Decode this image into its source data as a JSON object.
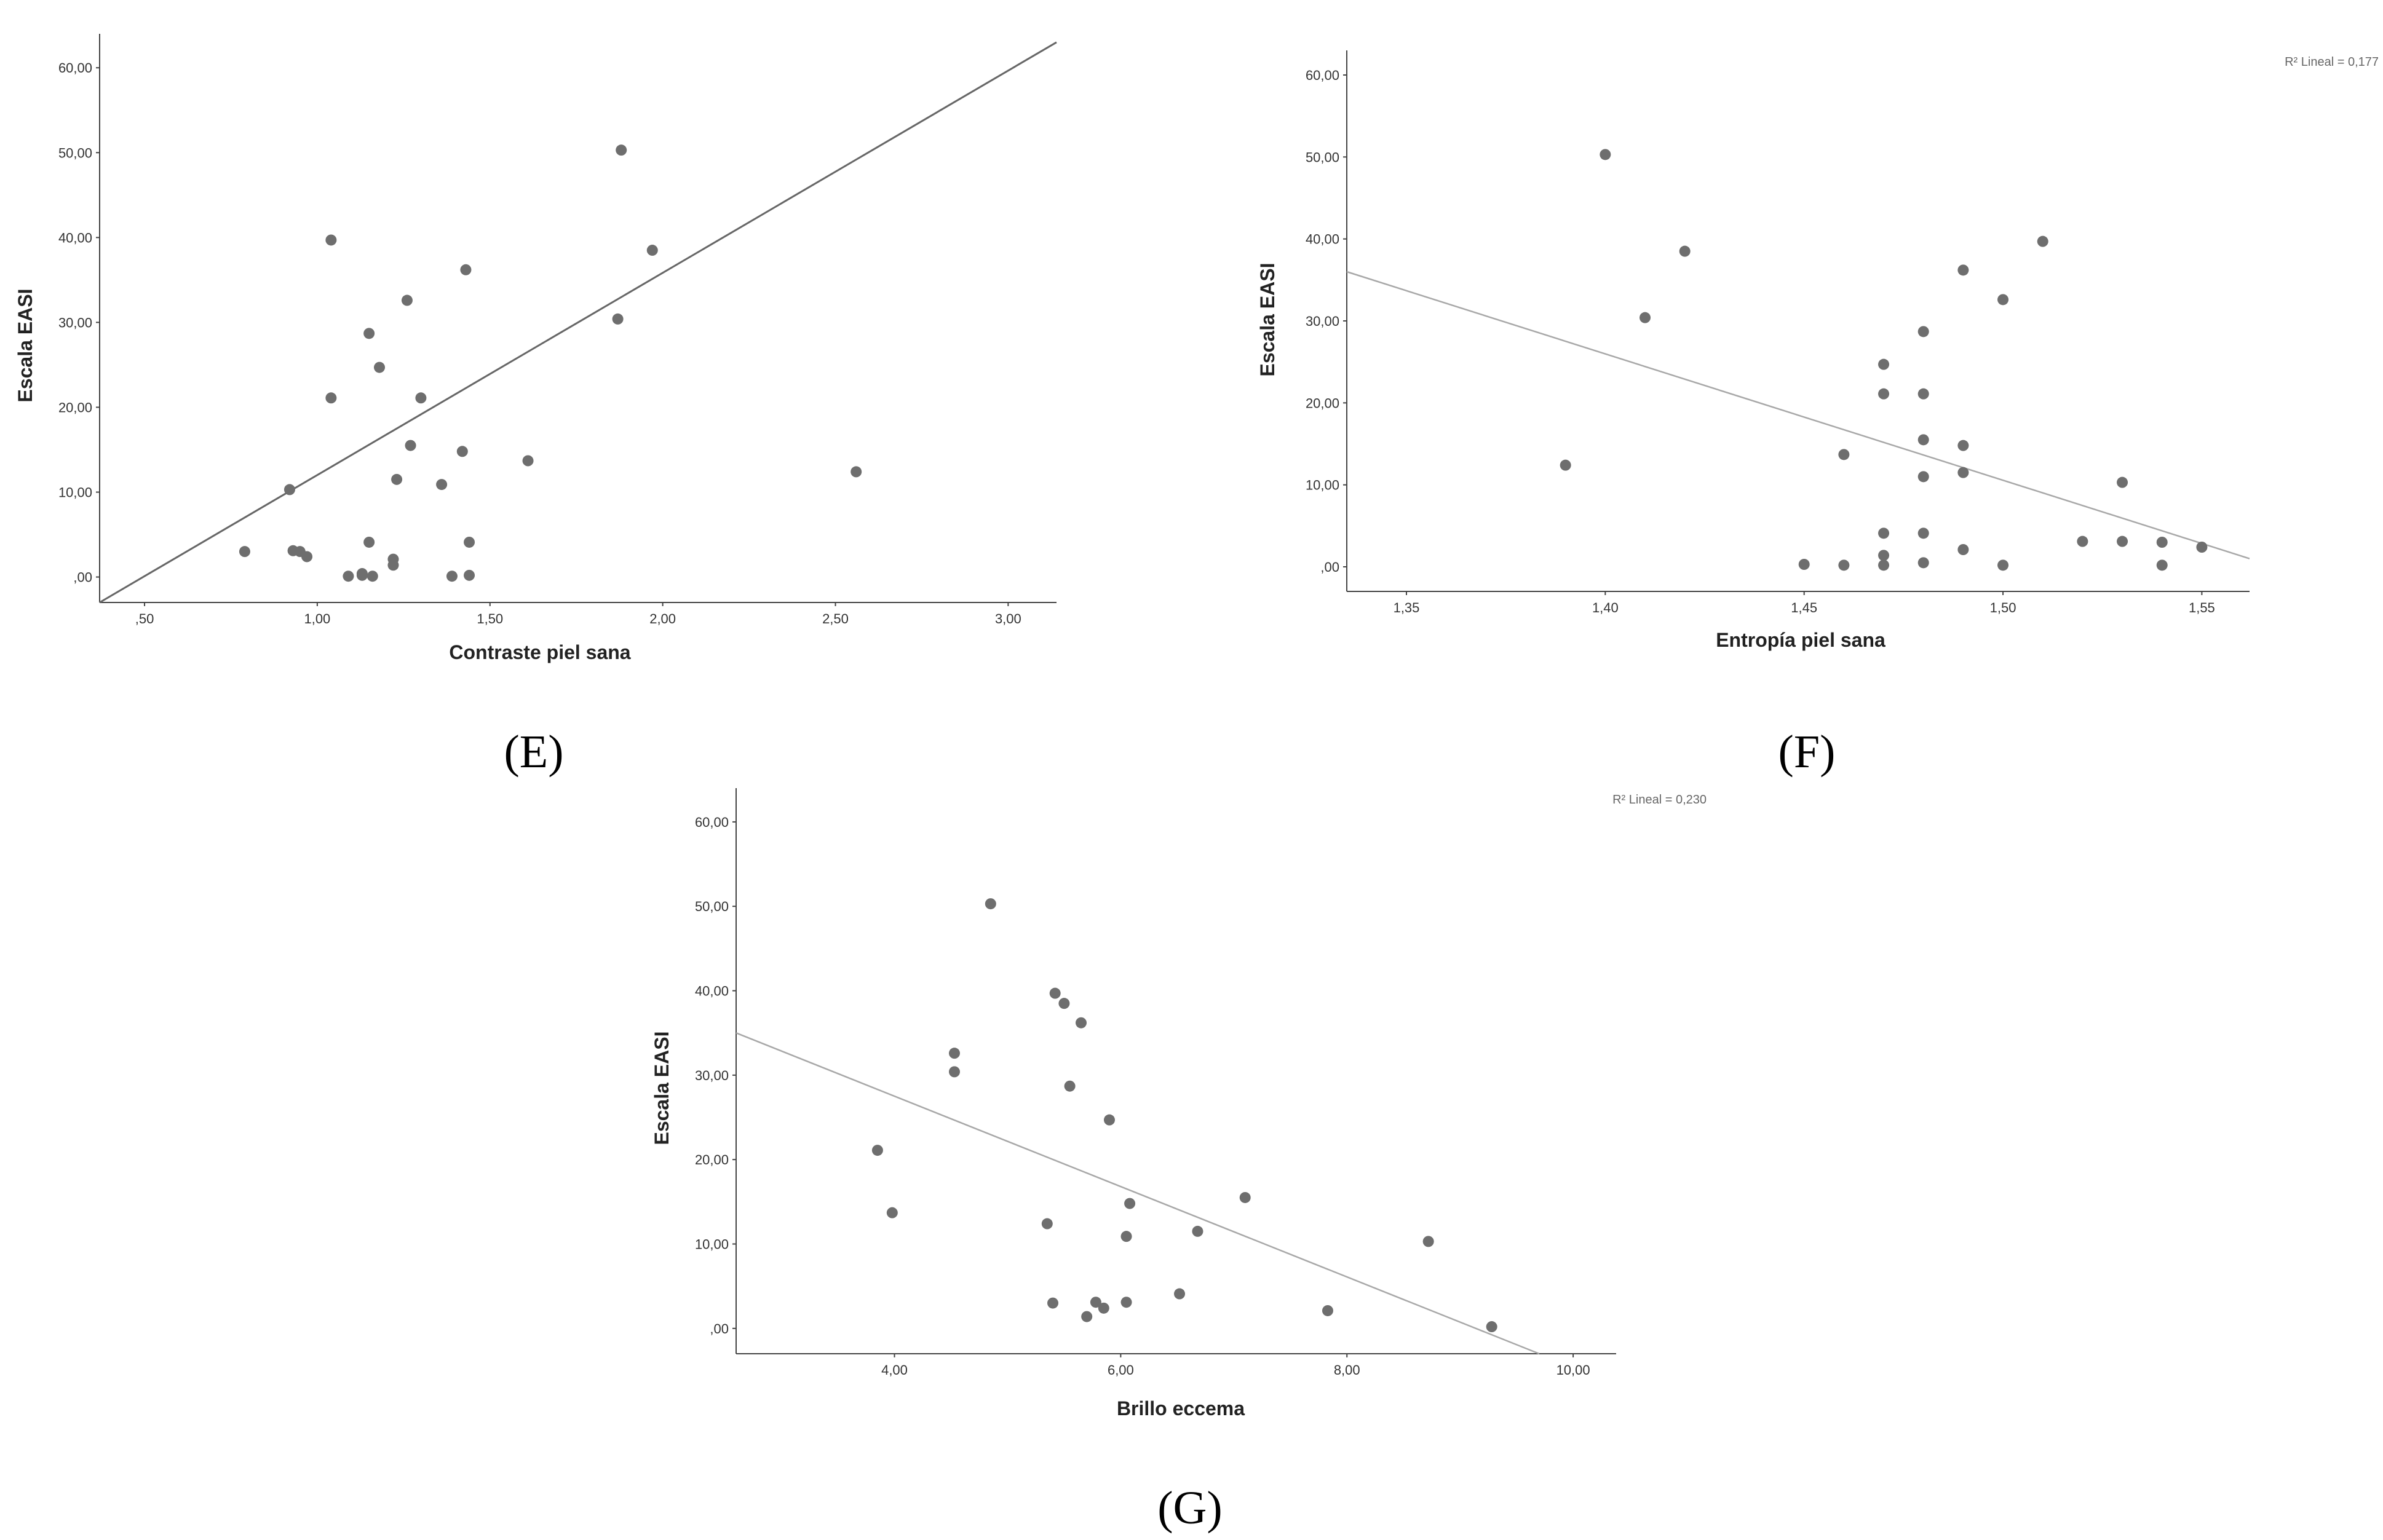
{
  "chart_data": [
    {
      "id": "E",
      "panel_label": "(E)",
      "type": "scatter",
      "xlabel": "Contraste piel sana",
      "ylabel": "Escala EASI",
      "xlim": [
        0.37,
        3.14
      ],
      "ylim": [
        -3.0,
        64.0
      ],
      "xticks": [
        0.5,
        1.0,
        1.5,
        2.0,
        2.5,
        3.0
      ],
      "xtick_labels": [
        ",50",
        "1,00",
        "1,50",
        "2,00",
        "2,50",
        "3,00"
      ],
      "yticks": [
        0,
        10,
        20,
        30,
        40,
        50,
        60
      ],
      "ytick_labels": [
        ",00",
        "10,00",
        "20,00",
        "30,00",
        "40,00",
        "50,00",
        "60,00"
      ],
      "r2_label": "",
      "fit_line": {
        "x": [
          0.37,
          3.14
        ],
        "y": [
          -3.0,
          63.0
        ]
      },
      "points": [
        [
          0.79,
          3.0
        ],
        [
          0.92,
          10.3
        ],
        [
          0.93,
          3.1
        ],
        [
          0.95,
          3.0
        ],
        [
          0.97,
          2.4
        ],
        [
          1.04,
          39.7
        ],
        [
          1.04,
          21.1
        ],
        [
          1.09,
          0.1
        ],
        [
          1.13,
          0.4
        ],
        [
          1.13,
          0.2
        ],
        [
          1.15,
          28.7
        ],
        [
          1.15,
          4.1
        ],
        [
          1.16,
          0.1
        ],
        [
          1.18,
          24.7
        ],
        [
          1.22,
          2.1
        ],
        [
          1.22,
          1.4
        ],
        [
          1.23,
          11.5
        ],
        [
          1.26,
          32.6
        ],
        [
          1.27,
          15.5
        ],
        [
          1.3,
          21.1
        ],
        [
          1.36,
          10.9
        ],
        [
          1.39,
          0.1
        ],
        [
          1.42,
          14.8
        ],
        [
          1.43,
          36.2
        ],
        [
          1.44,
          4.1
        ],
        [
          1.44,
          0.2
        ],
        [
          1.61,
          13.7
        ],
        [
          1.87,
          30.4
        ],
        [
          1.88,
          50.3
        ],
        [
          1.97,
          38.5
        ],
        [
          2.56,
          12.4
        ]
      ]
    },
    {
      "id": "F",
      "panel_label": "(F)",
      "type": "scatter",
      "xlabel": "Entropía piel sana",
      "ylabel": "Escala EASI",
      "xlim": [
        1.335,
        1.562
      ],
      "ylim": [
        -3.0,
        63.0
      ],
      "xticks": [
        1.35,
        1.4,
        1.45,
        1.5,
        1.55
      ],
      "xtick_labels": [
        "1,35",
        "1,40",
        "1,45",
        "1,50",
        "1,55"
      ],
      "yticks": [
        0,
        10,
        20,
        30,
        40,
        50,
        60
      ],
      "ytick_labels": [
        ",00",
        "10,00",
        "20,00",
        "30,00",
        "40,00",
        "50,00",
        "60,00"
      ],
      "r2_label": "R² Lineal = 0,177",
      "fit_line": {
        "x": [
          1.335,
          1.562
        ],
        "y": [
          36.0,
          1.0
        ]
      },
      "points": [
        [
          1.39,
          12.4
        ],
        [
          1.4,
          50.3
        ],
        [
          1.41,
          30.4
        ],
        [
          1.42,
          38.5
        ],
        [
          1.45,
          0.3
        ],
        [
          1.46,
          13.7
        ],
        [
          1.46,
          0.2
        ],
        [
          1.47,
          24.7
        ],
        [
          1.47,
          21.1
        ],
        [
          1.47,
          4.1
        ],
        [
          1.47,
          1.4
        ],
        [
          1.47,
          0.2
        ],
        [
          1.48,
          28.7
        ],
        [
          1.48,
          21.1
        ],
        [
          1.48,
          15.5
        ],
        [
          1.48,
          11.0
        ],
        [
          1.48,
          4.1
        ],
        [
          1.48,
          0.5
        ],
        [
          1.49,
          36.2
        ],
        [
          1.49,
          14.8
        ],
        [
          1.49,
          11.5
        ],
        [
          1.49,
          2.1
        ],
        [
          1.5,
          32.6
        ],
        [
          1.5,
          0.2
        ],
        [
          1.51,
          39.7
        ],
        [
          1.52,
          3.1
        ],
        [
          1.53,
          10.3
        ],
        [
          1.53,
          3.1
        ],
        [
          1.54,
          3.0
        ],
        [
          1.54,
          0.2
        ],
        [
          1.55,
          2.4
        ]
      ]
    },
    {
      "id": "G",
      "panel_label": "(G)",
      "type": "scatter",
      "xlabel": "Brillo eccema",
      "ylabel": "Escala EASI",
      "xlim": [
        2.6,
        10.38
      ],
      "ylim": [
        -3.0,
        64.0
      ],
      "xticks": [
        4.0,
        6.0,
        8.0,
        10.0
      ],
      "xtick_labels": [
        "4,00",
        "6,00",
        "8,00",
        "10,00"
      ],
      "yticks": [
        0,
        10,
        20,
        30,
        40,
        50,
        60
      ],
      "ytick_labels": [
        ",00",
        "10,00",
        "20,00",
        "30,00",
        "40,00",
        "50,00",
        "60,00"
      ],
      "r2_label": "R² Lineal = 0,230",
      "fit_line": {
        "x": [
          2.6,
          9.7
        ],
        "y": [
          35.0,
          -3.0
        ]
      },
      "points": [
        [
          3.85,
          21.1
        ],
        [
          3.98,
          13.7
        ],
        [
          4.53,
          32.6
        ],
        [
          4.53,
          30.4
        ],
        [
          4.85,
          50.3
        ],
        [
          5.35,
          12.4
        ],
        [
          5.4,
          3.0
        ],
        [
          5.42,
          39.7
        ],
        [
          5.5,
          38.5
        ],
        [
          5.55,
          28.7
        ],
        [
          5.65,
          36.2
        ],
        [
          5.7,
          1.4
        ],
        [
          5.78,
          3.1
        ],
        [
          5.85,
          2.4
        ],
        [
          5.9,
          24.7
        ],
        [
          6.05,
          10.9
        ],
        [
          6.05,
          3.1
        ],
        [
          6.08,
          14.8
        ],
        [
          6.52,
          4.1
        ],
        [
          6.68,
          11.5
        ],
        [
          7.1,
          15.5
        ],
        [
          7.83,
          2.1
        ],
        [
          8.72,
          10.3
        ],
        [
          9.28,
          0.2
        ]
      ]
    }
  ]
}
